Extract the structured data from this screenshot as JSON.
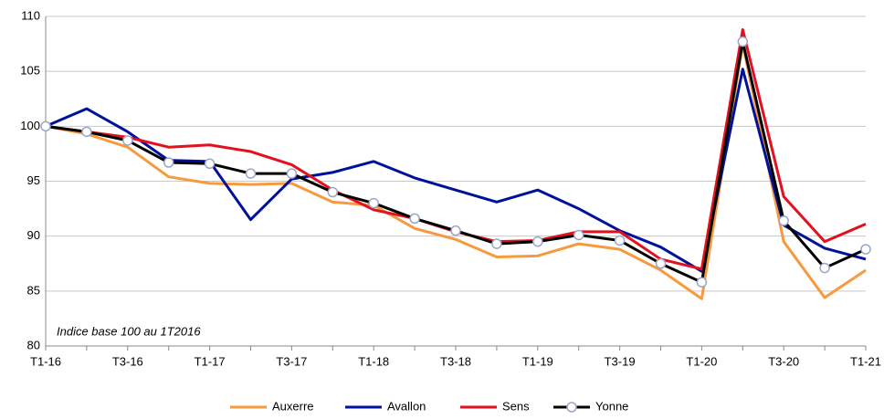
{
  "chart_data": {
    "type": "line",
    "annotation": "Indice base 100 au 1T2016",
    "categories": [
      "T1-16",
      null,
      "T3-16",
      null,
      "T1-17",
      null,
      "T3-17",
      null,
      "T1-18",
      null,
      "T3-18",
      null,
      "T1-19",
      null,
      "T3-19",
      null,
      "T1-20",
      null,
      "T3-20",
      null,
      "T1-21"
    ],
    "series": [
      {
        "name": "Auxerre",
        "color": "#f79a3e",
        "values": [
          100,
          99.3,
          98.1,
          95.4,
          94.8,
          94.7,
          94.8,
          93.1,
          92.8,
          90.7,
          89.7,
          88.1,
          88.2,
          89.3,
          88.8,
          86.9,
          84.3,
          107.5,
          89.5,
          84.4,
          86.9
        ]
      },
      {
        "name": "Avallon",
        "color": "#00129a",
        "values": [
          100,
          101.6,
          99.5,
          96.9,
          96.8,
          91.5,
          95.2,
          95.8,
          96.8,
          95.3,
          94.2,
          93.1,
          94.2,
          92.5,
          90.5,
          89.0,
          86.8,
          105.2,
          91.0,
          88.9,
          87.9
        ]
      },
      {
        "name": "Sens",
        "color": "#e3101f",
        "values": [
          100,
          99.5,
          99.0,
          98.1,
          98.3,
          97.7,
          96.5,
          94.2,
          92.4,
          91.6,
          90.4,
          89.5,
          89.6,
          90.4,
          90.4,
          87.9,
          87.0,
          108.8,
          93.6,
          89.5,
          91.1
        ]
      },
      {
        "name": "Yonne",
        "color": "#000000",
        "marker": true,
        "values": [
          100,
          99.5,
          98.7,
          96.7,
          96.6,
          95.7,
          95.7,
          94.0,
          93.0,
          91.6,
          90.5,
          89.3,
          89.5,
          90.1,
          89.6,
          87.5,
          85.8,
          107.7,
          91.4,
          87.1,
          88.8
        ]
      }
    ],
    "ylim": [
      80,
      110
    ],
    "yticks": [
      80,
      85,
      90,
      95,
      100,
      105,
      110
    ],
    "grid": true,
    "legend": "bottom"
  }
}
